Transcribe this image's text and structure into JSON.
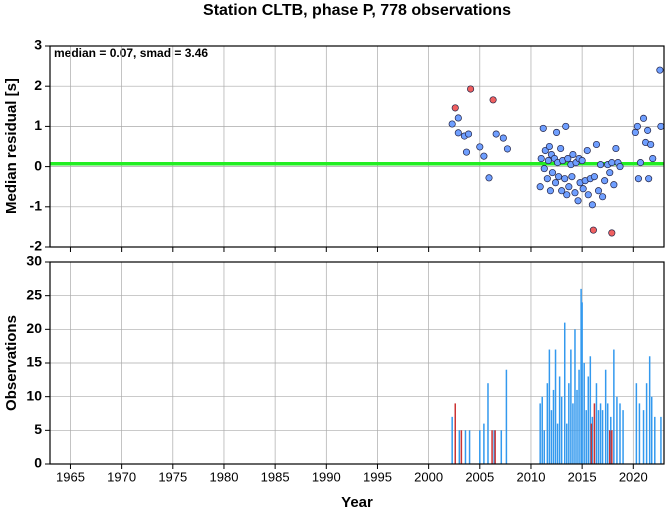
{
  "chart_data": [
    {
      "type": "scatter",
      "title": "Station CLTB, phase P, 778 observations",
      "ylabel": "Median residual [s]",
      "annotation": "median = 0.07, smad = 3.46",
      "median_line": {
        "value": 0.07,
        "color": "#22ee22"
      },
      "xlim": [
        1963,
        2023
      ],
      "xticks": [
        1965,
        1970,
        1975,
        1980,
        1985,
        1990,
        1995,
        2000,
        2005,
        2010,
        2015,
        2020
      ],
      "ylim": [
        -2,
        3
      ],
      "yticks": [
        -2,
        -1,
        0,
        1,
        2,
        3
      ],
      "grid": true,
      "series": [
        {
          "color": "#6f9fff",
          "x": [
            2002.3,
            2002.9,
            2002.9,
            2003.5,
            2003.9,
            2003.7,
            2005.0,
            2005.4,
            2005.9,
            2006.6,
            2007.3,
            2007.7,
            2010.9,
            2011.0,
            2011.2,
            2011.3,
            2011.4,
            2011.6,
            2011.7,
            2011.8,
            2011.9,
            2012.0,
            2012.1,
            2012.3,
            2012.4,
            2012.5,
            2012.6,
            2012.7,
            2012.9,
            2013.0,
            2013.1,
            2013.3,
            2013.4,
            2013.5,
            2013.6,
            2013.7,
            2013.9,
            2014.0,
            2014.1,
            2014.3,
            2014.4,
            2014.6,
            2014.7,
            2014.8,
            2015.0,
            2015.1,
            2015.3,
            2015.5,
            2015.6,
            2015.8,
            2016.0,
            2016.2,
            2016.4,
            2016.6,
            2016.8,
            2017.0,
            2017.2,
            2017.5,
            2017.7,
            2017.9,
            2018.1,
            2018.3,
            2018.5,
            2018.7,
            2020.2,
            2020.4,
            2020.5,
            2020.7,
            2021.0,
            2021.2,
            2021.4,
            2021.5,
            2021.7,
            2021.9,
            2022.6,
            2022.7
          ],
          "values": [
            1.06,
            1.21,
            0.84,
            0.76,
            0.81,
            0.36,
            0.49,
            0.26,
            -0.28,
            0.81,
            0.71,
            0.44,
            -0.5,
            0.2,
            0.95,
            -0.05,
            0.4,
            -0.3,
            0.15,
            0.5,
            -0.6,
            0.3,
            -0.15,
            0.2,
            -0.4,
            0.85,
            0.1,
            -0.25,
            0.45,
            -0.6,
            0.15,
            -0.3,
            1.0,
            -0.7,
            0.2,
            -0.5,
            0.05,
            -0.25,
            0.3,
            -0.65,
            0.1,
            -0.85,
            0.2,
            -0.4,
            0.15,
            -0.55,
            -0.35,
            0.4,
            -0.7,
            -0.3,
            -0.95,
            -0.25,
            0.55,
            -0.6,
            0.05,
            -0.75,
            -0.35,
            0.05,
            -0.15,
            0.1,
            -0.45,
            0.45,
            0.1,
            0.0,
            0.85,
            1.0,
            -0.3,
            0.1,
            1.2,
            0.6,
            0.9,
            -0.3,
            0.55,
            0.2,
            2.4,
            1.0
          ]
        },
        {
          "color": "#f06060",
          "x": [
            2002.6,
            2004.1,
            2006.3,
            2016.1,
            2017.9
          ],
          "values": [
            1.46,
            1.93,
            1.66,
            -1.58,
            -1.65
          ]
        }
      ]
    },
    {
      "type": "spike",
      "xlabel": "Year",
      "ylabel": "Observations",
      "xlim": [
        1963,
        2023
      ],
      "xticks": [
        1965,
        1970,
        1975,
        1980,
        1985,
        1990,
        1995,
        2000,
        2005,
        2010,
        2015,
        2020
      ],
      "ylim": [
        0,
        30
      ],
      "yticks": [
        0,
        5,
        10,
        15,
        20,
        25,
        30
      ],
      "grid": true,
      "series": [
        {
          "color": "#3399ee",
          "x": [
            2002.3,
            2003.0,
            2003.6,
            2004.0,
            2005.0,
            2005.4,
            2005.8,
            2006.4,
            2007.1,
            2007.6,
            2010.9,
            2011.1,
            2011.3,
            2011.6,
            2011.8,
            2012.0,
            2012.2,
            2012.4,
            2012.6,
            2012.8,
            2013.0,
            2013.3,
            2013.5,
            2013.7,
            2013.9,
            2014.1,
            2014.3,
            2014.5,
            2014.7,
            2014.9,
            2015.0,
            2015.2,
            2015.4,
            2015.6,
            2015.8,
            2016.0,
            2016.4,
            2016.6,
            2016.8,
            2017.0,
            2017.3,
            2017.5,
            2017.8,
            2018.1,
            2018.4,
            2018.7,
            2019.0,
            2020.3,
            2020.6,
            2021.0,
            2021.3,
            2021.6,
            2021.8,
            2022.1,
            2022.7
          ],
          "values": [
            7,
            5,
            5,
            5,
            5,
            6,
            12,
            5,
            5,
            14,
            9,
            10,
            5,
            12,
            17,
            8,
            11,
            17,
            6,
            13,
            10,
            21,
            6,
            12,
            17,
            9,
            20,
            11,
            14,
            26,
            24,
            15,
            8,
            13,
            16,
            7,
            12,
            8,
            9,
            8,
            14,
            9,
            7,
            17,
            10,
            9,
            8,
            12,
            9,
            8,
            12,
            16,
            10,
            7,
            7
          ]
        },
        {
          "color": "#cc3333",
          "x": [
            2002.6,
            2003.2,
            2006.2,
            2006.5,
            2015.9,
            2016.2,
            2017.7,
            2017.9
          ],
          "values": [
            9,
            5,
            5,
            5,
            6,
            9,
            5,
            5
          ]
        }
      ]
    }
  ]
}
